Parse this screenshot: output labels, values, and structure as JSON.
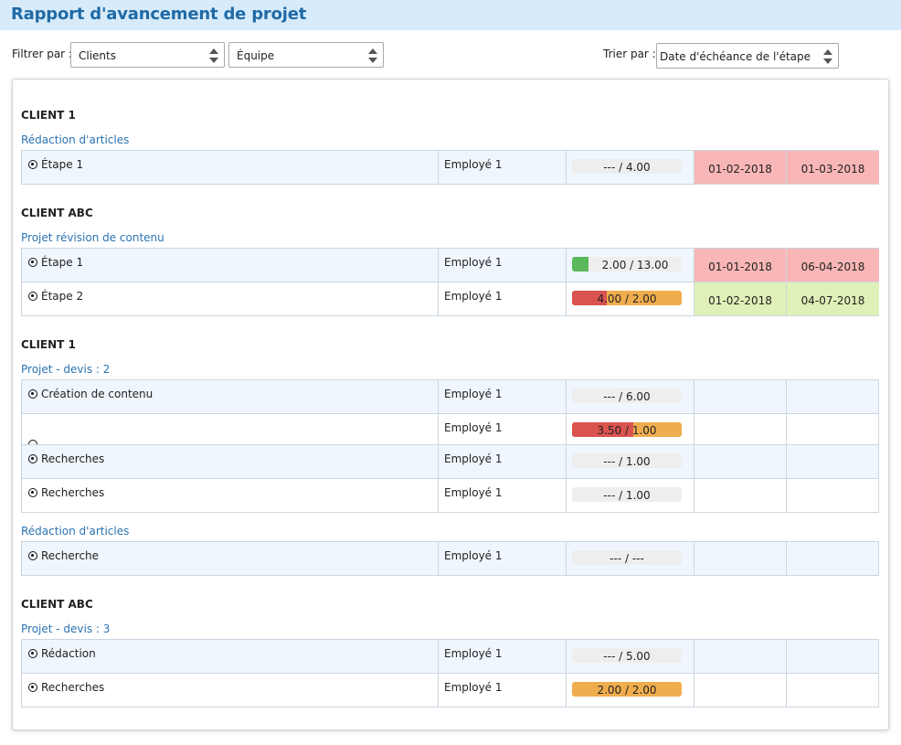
{
  "title": "Rapport d'avancement de projet",
  "filters": {
    "filter_label": "Filtrer par :",
    "clients_value": "Clients",
    "team_value": "Équipe",
    "sort_label": "Trier par :",
    "sort_value": "Date d'échéance de l'étape"
  },
  "colors": {
    "accent": "#1f6aa6",
    "late": "#f9b6b6",
    "ok": "#dff0b8",
    "green": "#5cb85c",
    "red": "#d9534f",
    "orange": "#f0ad4e"
  },
  "groups": [
    {
      "client": "CLIENT 1",
      "project": "Rédaction d'articles",
      "rows": [
        {
          "task": "Étape 1",
          "employee": "Employé 1",
          "progress": "--- / 4.00",
          "d1": "01-02-2018",
          "d2": "01-03-2018"
        }
      ]
    },
    {
      "client": "CLIENT ABC",
      "project": "Projet révision de contenu",
      "rows": [
        {
          "task": "Étape 1",
          "employee": "Employé 1",
          "progress": "2.00 / 13.00",
          "d1": "01-01-2018",
          "d2": "06-04-2018"
        },
        {
          "task": "Étape 2",
          "employee": "Employé 1",
          "progress": "4.00 / 2.00",
          "d1": "01-02-2018",
          "d2": "04-07-2018"
        }
      ]
    },
    {
      "client": "CLIENT 1",
      "project": "Projet - devis : 2",
      "rows": [
        {
          "task": "Création de contenu",
          "employee": "Employé 1",
          "progress": "--- / 6.00"
        },
        {
          "task": "",
          "employee": "Employé 1",
          "progress": "3.50 / 1.00"
        },
        {
          "task": "Recherches",
          "employee": "Employé 1",
          "progress": "--- / 1.00"
        },
        {
          "task": "Recherches",
          "employee": "Employé 1",
          "progress": "--- / 1.00"
        }
      ]
    },
    {
      "project": "Rédaction d'articles",
      "rows": [
        {
          "task": "Recherche",
          "employee": "Employé 1",
          "progress": "--- / ---"
        }
      ]
    },
    {
      "client": "CLIENT ABC",
      "project": "Projet - devis : 3",
      "rows": [
        {
          "task": "Rédaction",
          "employee": "Employé 1",
          "progress": "--- / 5.00"
        },
        {
          "task": "Recherches",
          "employee": "Employé 1",
          "progress": "2.00 / 2.00"
        }
      ]
    }
  ]
}
